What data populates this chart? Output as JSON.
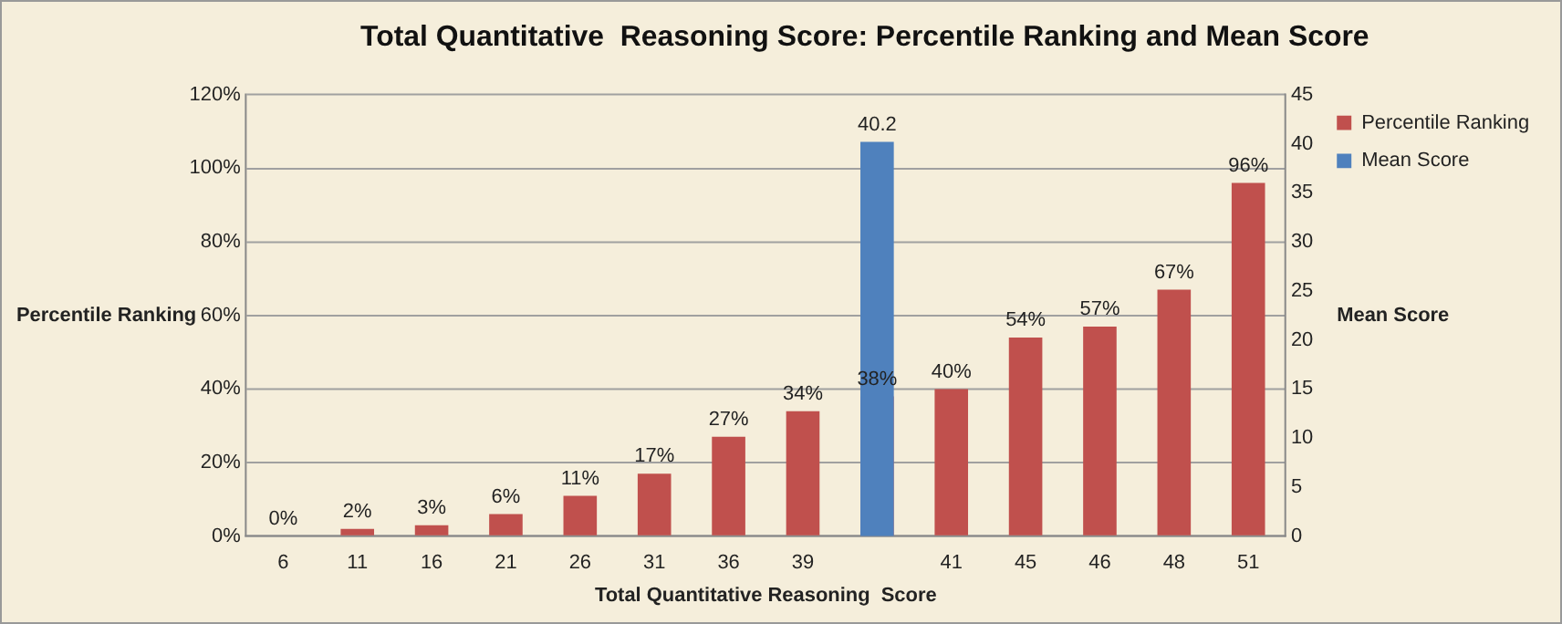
{
  "chart_data": {
    "type": "bar",
    "title": "Total Quantitative  Reasoning Score: Percentile Ranking and Mean Score",
    "xlabel": "Total Quantitative Reasoning  Score",
    "ylabel": "Percentile Ranking",
    "y2label": "Mean Score",
    "categories": [
      "6",
      "11",
      "16",
      "21",
      "26",
      "31",
      "36",
      "39",
      null,
      "41",
      "45",
      "46",
      "48",
      "51"
    ],
    "series": [
      {
        "name": "Percentile Ranking",
        "color": "#c0504d",
        "values": [
          0,
          2,
          3,
          6,
          11,
          17,
          27,
          34,
          38,
          40,
          54,
          57,
          67,
          96
        ],
        "value_labels": [
          "0%",
          "2%",
          "3%",
          "6%",
          "11%",
          "17%",
          "27%",
          "34%",
          "38%",
          "40%",
          "54%",
          "57%",
          "67%",
          "96%"
        ]
      },
      {
        "name": "Mean Score",
        "color": "#4f81bd",
        "axis": "y2",
        "values": [
          null,
          null,
          null,
          null,
          null,
          null,
          null,
          null,
          40.2,
          null,
          null,
          null,
          null,
          null
        ],
        "value_labels": [
          null,
          null,
          null,
          null,
          null,
          null,
          null,
          null,
          "40.2",
          null,
          null,
          null,
          null,
          null
        ]
      }
    ],
    "ylim": [
      0,
      120
    ],
    "yticks": [
      {
        "value": 0,
        "label": "0%"
      },
      {
        "value": 20,
        "label": "20%"
      },
      {
        "value": 40,
        "label": "40%"
      },
      {
        "value": 60,
        "label": "60%"
      },
      {
        "value": 80,
        "label": "80%"
      },
      {
        "value": 100,
        "label": "100%"
      },
      {
        "value": 120,
        "label": "120%"
      }
    ],
    "y2lim": [
      0,
      45
    ],
    "y2ticks": [
      0,
      5,
      10,
      15,
      20,
      25,
      30,
      35,
      40,
      45
    ],
    "grid": "y",
    "legend": "top right"
  }
}
